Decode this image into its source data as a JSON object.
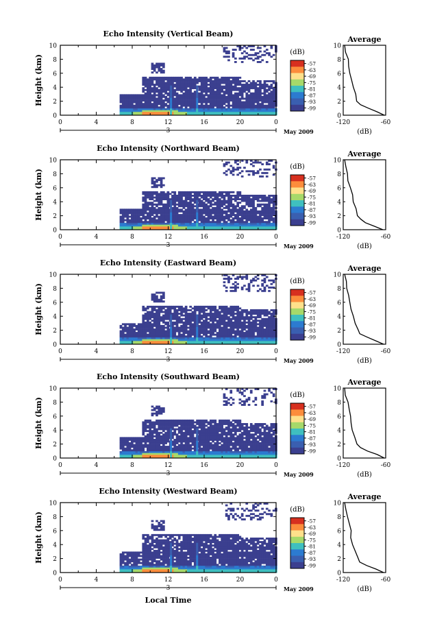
{
  "figure": {
    "xlabel": "Local Time",
    "date_label": "May 2009"
  },
  "colorbar": {
    "unit": "(dB)",
    "ticks": [
      "-57",
      "-63",
      "-69",
      "-75",
      "-81",
      "-87",
      "-93",
      "-99"
    ],
    "colors": [
      "#d7301f",
      "#fc8d3c",
      "#fee08b",
      "#a6d96a",
      "#3fbfbf",
      "#2c7bd0",
      "#3a5fb0",
      "#3b3f8f"
    ]
  },
  "chart_data": [
    {
      "type": "heatmap",
      "title": "Echo Intensity (Vertical Beam)",
      "xlabel": "",
      "ylabel": "Height (km)",
      "xlim": [
        0,
        24
      ],
      "ylim": [
        0,
        10
      ],
      "xticks": [
        "0",
        "4",
        "8",
        "12",
        "16",
        "20",
        "0"
      ],
      "yticks": [
        "0",
        "2",
        "4",
        "6",
        "8",
        "10"
      ],
      "day_marker": "3",
      "profile": {
        "title": "Average",
        "xlabel": "(dB)",
        "xlim": [
          -120,
          -60
        ],
        "xticks": [
          "-120",
          "-60"
        ],
        "yticks": [
          "0",
          "2",
          "4",
          "6",
          "8",
          "10"
        ],
        "height_km": [
          0,
          0.5,
          1,
          1.5,
          2,
          3,
          4,
          5,
          6,
          7,
          8,
          9,
          10
        ],
        "values_db": [
          -62,
          -72,
          -85,
          -95,
          -100,
          -103,
          -106,
          -108,
          -110,
          -112,
          -114,
          -116,
          -118
        ]
      }
    },
    {
      "type": "heatmap",
      "title": "Echo Intensity (Northward Beam)",
      "xlabel": "",
      "ylabel": "Height (km)",
      "xlim": [
        0,
        24
      ],
      "ylim": [
        0,
        10
      ],
      "xticks": [
        "0",
        "4",
        "8",
        "12",
        "16",
        "20",
        "0"
      ],
      "yticks": [
        "0",
        "2",
        "4",
        "6",
        "8",
        "10"
      ],
      "day_marker": "3",
      "profile": {
        "title": "Average",
        "xlabel": "(dB)",
        "xlim": [
          -120,
          -60
        ],
        "xticks": [
          "-120",
          "-60"
        ],
        "yticks": [
          "0",
          "2",
          "4",
          "6",
          "8",
          "10"
        ],
        "height_km": [
          0,
          0.5,
          1,
          1.5,
          2,
          3,
          4,
          5,
          6,
          7,
          8,
          9,
          10
        ],
        "values_db": [
          -64,
          -75,
          -88,
          -96,
          -100,
          -103,
          -106,
          -108,
          -110,
          -112,
          -114,
          -116,
          -118
        ]
      }
    },
    {
      "type": "heatmap",
      "title": "Echo Intensity (Eastward Beam)",
      "xlabel": "",
      "ylabel": "Height (km)",
      "xlim": [
        0,
        24
      ],
      "ylim": [
        0,
        10
      ],
      "xticks": [
        "0",
        "4",
        "8",
        "12",
        "16",
        "20",
        "0"
      ],
      "yticks": [
        "0",
        "2",
        "4",
        "6",
        "8",
        "10"
      ],
      "day_marker": "3",
      "profile": {
        "title": "Average",
        "xlabel": "(dB)",
        "xlim": [
          -120,
          -60
        ],
        "xticks": [
          "-120",
          "-60"
        ],
        "yticks": [
          "0",
          "2",
          "4",
          "6",
          "8",
          "10"
        ],
        "height_km": [
          0,
          0.5,
          1,
          1.5,
          2,
          3,
          4,
          5,
          6,
          7,
          8,
          9,
          10
        ],
        "values_db": [
          -63,
          -74,
          -87,
          -96,
          -100,
          -103,
          -106,
          -108,
          -110,
          -112,
          -114,
          -116,
          -118
        ]
      }
    },
    {
      "type": "heatmap",
      "title": "Echo Intensity (Southward Beam)",
      "xlabel": "",
      "ylabel": "Height (km)",
      "xlim": [
        0,
        24
      ],
      "ylim": [
        0,
        10
      ],
      "xticks": [
        "0",
        "4",
        "8",
        "12",
        "16",
        "20",
        "0"
      ],
      "yticks": [
        "0",
        "2",
        "4",
        "6",
        "8",
        "10"
      ],
      "day_marker": "3",
      "profile": {
        "title": "Average",
        "xlabel": "(dB)",
        "xlim": [
          -120,
          -60
        ],
        "xticks": [
          "-120",
          "-60"
        ],
        "yticks": [
          "0",
          "2",
          "4",
          "6",
          "8",
          "10"
        ],
        "height_km": [
          0,
          0.5,
          1,
          1.5,
          2,
          3,
          4,
          5,
          6,
          7,
          8,
          9,
          10
        ],
        "values_db": [
          -62,
          -73,
          -86,
          -95,
          -100,
          -103,
          -106,
          -108,
          -110,
          -112,
          -114,
          -116,
          -118
        ]
      }
    },
    {
      "type": "heatmap",
      "title": "Echo Intensity (Westward Beam)",
      "xlabel": "Local Time",
      "ylabel": "Height (km)",
      "xlim": [
        0,
        24
      ],
      "ylim": [
        0,
        10
      ],
      "xticks": [
        "0",
        "4",
        "8",
        "12",
        "16",
        "20",
        "0"
      ],
      "yticks": [
        "0",
        "2",
        "4",
        "6",
        "8",
        "10"
      ],
      "day_marker": "3",
      "profile": {
        "title": "Average",
        "xlabel": "(dB)",
        "xlim": [
          -120,
          -60
        ],
        "xticks": [
          "-120",
          "-60"
        ],
        "yticks": [
          "0",
          "2",
          "4",
          "6",
          "8",
          "10"
        ],
        "height_km": [
          0,
          0.5,
          1,
          1.5,
          2,
          3,
          4,
          5,
          6,
          7,
          8,
          9,
          10
        ],
        "values_db": [
          -63,
          -74,
          -87,
          -96,
          -100,
          -103,
          -106,
          -108,
          -110,
          -112,
          -114,
          -116,
          -118
        ]
      }
    }
  ]
}
